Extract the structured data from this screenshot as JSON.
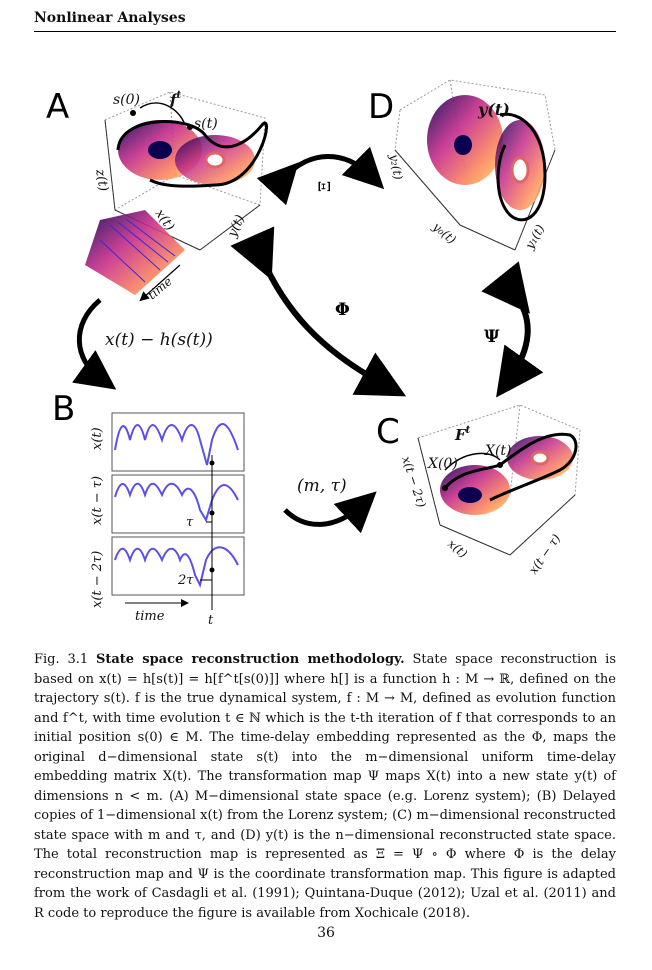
{
  "header": {
    "title": "Nonlinear Analyses"
  },
  "figure": {
    "panels": {
      "a": "A",
      "b": "B",
      "c": "C",
      "d": "D"
    },
    "labels": {
      "s0": "s(0)",
      "ft": "f",
      "t_sup": "t",
      "st": "s(t)",
      "zt": "z(t)",
      "xt_axis": "x(t)",
      "yt_axis": "y(t)",
      "time_arrow": "time",
      "x_minus_h": "x(t) − h(s(t))",
      "xi": "Ξ",
      "phi": "Φ",
      "psi": "Ψ",
      "m_tau": "(m, τ)",
      "yt_bold": "y(t)",
      "y2": "y₂(t)",
      "y0": "y₀(t)",
      "y1": "y₁(t)",
      "Ft": "F",
      "X0": "X(0)",
      "Xt": "X(t)",
      "c_zaxis": "x(t − 2τ)",
      "c_xaxis": "x(t)",
      "c_yaxis": "x(t − τ)",
      "b_y1": "x(t)",
      "b_y2": "x(t − τ)",
      "b_y3": "x(t − 2τ)",
      "tau": "τ",
      "two_tau": "2τ",
      "b_time": "time",
      "b_t": "t"
    }
  },
  "caption": {
    "prefix": "Fig. 3.1",
    "title": "State space reconstruction methodology.",
    "body": "State space reconstruction is based on x(t) = h[s(t)] = h[f^t[s(0)]] where h[] is a function h : M → ℝ, defined on the trajectory s(t). f is the true dynamical system, f : M → M, defined as evolution function and f^t, with time evolution t ∈ ℕ which is the t-th iteration of f that corresponds to an initial position s(0) ∈ M. The time-delay embedding represented as the Φ, maps the original d−dimensional state s(t) into the m−dimensional uniform time-delay embedding matrix X(t). The transformation map Ψ maps X(t) into a new state y(t) of dimensions n < m. (A) M−dimensional state space (e.g. Lorenz system); (B) Delayed copies of 1−dimensional x(t) from the Lorenz system; (C) m−dimensional reconstructed state space with m and τ, and (D) y(t) is the n−dimensional reconstructed state space. The total reconstruction map is represented as Ξ = Ψ ∘ Φ where Φ is the delay reconstruction map and Ψ is the coordinate transformation map. This figure is adapted from the work of Casdagli et al. (1991); Quintana-Duque (2012); Uzal et al. (2011) and R code to reproduce the figure is available from Xochicale (2018)."
  },
  "page": {
    "number": "36"
  }
}
